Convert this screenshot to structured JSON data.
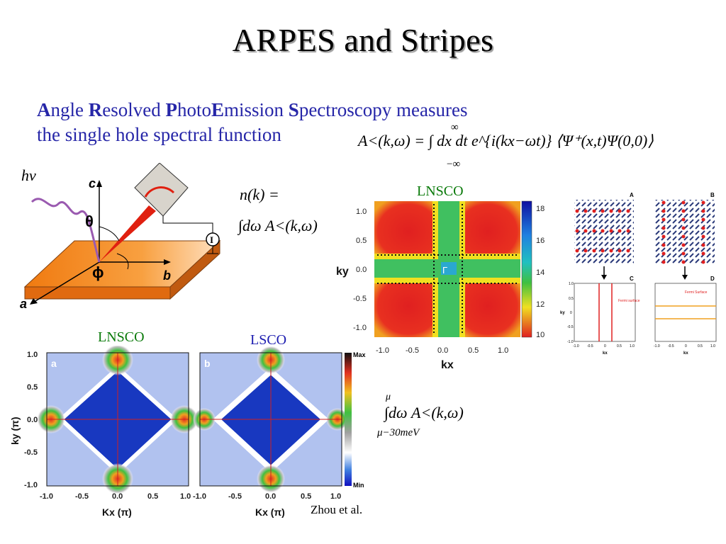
{
  "slide": {
    "title": "ARPES and Stripes",
    "subtitle_parts": [
      {
        "cap": "A",
        "rest": "ngle "
      },
      {
        "cap": "R",
        "rest": "esolved "
      },
      {
        "cap": "P",
        "rest": "hoto"
      },
      {
        "cap": "E",
        "rest": "mission "
      },
      {
        "cap": "S",
        "rest": "pectroscopy measures"
      }
    ],
    "subtitle_line2": "the single hole spectral function",
    "citation": "Zhou et al."
  },
  "equations": {
    "spectral": "A<(k,ω) = ∫ dx dt e^{i(kx−ωt)} ⟨Ψ⁺(x,t)Ψ(0,0)⟩",
    "spectral_upper": "∞",
    "spectral_lower": "−∞",
    "nk_line1": "n(k) =",
    "nk_line2": "∫dω A<(k,ω)",
    "integral_upper": "μ",
    "integral_lower": "μ−30meV",
    "integral_body": "∫dω A<(k,ω)"
  },
  "diagram": {
    "photon_label": "hν",
    "theta_label": "θ",
    "phi_label": "ϕ",
    "axis_c": "c",
    "axis_b": "b",
    "axis_a": "a",
    "meter_label": "I",
    "colors": {
      "crystal": "#f08020",
      "photon": "#9a5ab0",
      "detector": "#e02010"
    }
  },
  "labels": {
    "lnsco_top": "LNSCO",
    "lnsco_bottom": "LNSCO",
    "lsco": "LSCO"
  },
  "top_map": {
    "y_ticks": [
      "1.0",
      "0.5",
      "0.0",
      "-0.5",
      "-1.0"
    ],
    "x_ticks": [
      "-1.0",
      "-0.5",
      "0.0",
      "0.5",
      "1.0"
    ],
    "ylabel": "ky",
    "xlabel": "kx",
    "colorbar_ticks": [
      "18",
      "16",
      "14",
      "12",
      "10"
    ],
    "gamma_label": "Γ"
  },
  "stripe_panels": {
    "labels": [
      "A",
      "B",
      "C",
      "D"
    ],
    "annotation_c": "Fermi surface",
    "annotation_d": "Fermi Surface",
    "x_ticks": [
      "-1.0",
      "-0.5",
      "0",
      "0.5",
      "1.0"
    ],
    "y_ticks": [
      "1.0",
      "0.5",
      "0",
      "-0.5",
      "-1.0"
    ],
    "xlabel": "kx",
    "ylabel": "ky",
    "colors": {
      "c_lines": "#e02020",
      "d_lines": "#f0a020"
    }
  },
  "bottom_maps": {
    "panel_a": "a",
    "panel_b": "b",
    "y_ticks": [
      "1.0",
      "0.5",
      "0.0",
      "-0.5",
      "-1.0"
    ],
    "x_ticks_a": [
      "-1.0",
      "-0.5",
      "0.0",
      "0.5",
      "1.0"
    ],
    "x_ticks_b": [
      "-1.0",
      "-0.5",
      "0.0",
      "0.5",
      "1.0"
    ],
    "ylabel": "ky (π)",
    "xlabel_a": "Kx (π)",
    "xlabel_b": "Kx (π)",
    "colorbar_max": "Max",
    "colorbar_min": "Min"
  }
}
